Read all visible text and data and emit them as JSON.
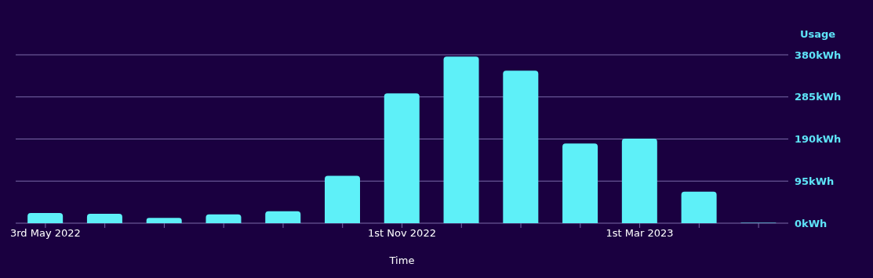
{
  "chart_data": {
    "type": "bar",
    "xlabel": "Time",
    "ylabel": "Usage",
    "categories": [
      "3rd May 2022",
      null,
      null,
      null,
      null,
      null,
      "1st Nov 2022",
      null,
      null,
      null,
      "1st Mar 2023",
      null,
      null
    ],
    "values": [
      23,
      21,
      12,
      20,
      27,
      107,
      293,
      376,
      344,
      180,
      191,
      71,
      1
    ],
    "color": "#5ef0f8",
    "ylim": [
      0,
      380
    ],
    "yticks": [
      {
        "value": 0,
        "label": "0kWh"
      },
      {
        "value": 95,
        "label": "95kWh"
      },
      {
        "value": 190,
        "label": "190kWh"
      },
      {
        "value": 285,
        "label": "285kWh"
      },
      {
        "value": 380,
        "label": "380kWh"
      }
    ],
    "grid": "y"
  }
}
